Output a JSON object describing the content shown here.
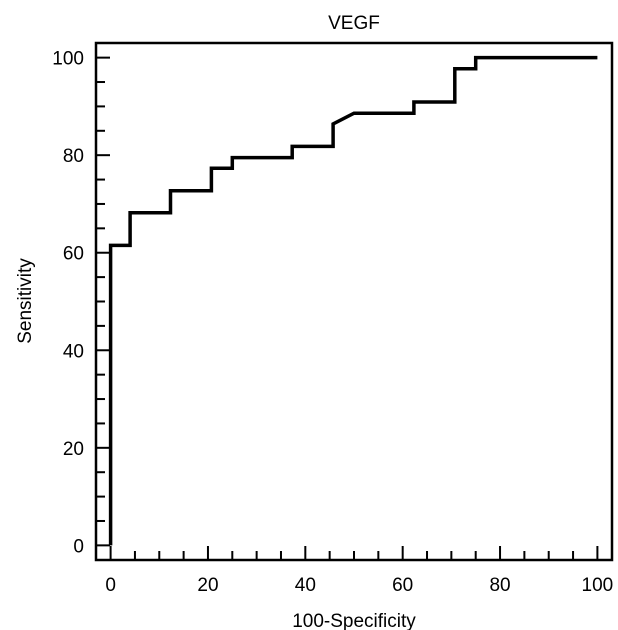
{
  "chart_data": {
    "type": "line",
    "title": "VEGF",
    "xlabel": "100-Specificity",
    "ylabel": "Sensitivity",
    "xlim": [
      -3,
      103
    ],
    "ylim": [
      -3,
      103
    ],
    "x_ticks": [
      0,
      20,
      40,
      60,
      80,
      100
    ],
    "y_ticks": [
      0,
      20,
      40,
      60,
      80,
      100
    ],
    "grid": false,
    "series": [
      {
        "step": true,
        "color": "#000000",
        "points": [
          [
            0,
            0
          ],
          [
            0,
            61.5
          ],
          [
            4,
            61.5
          ],
          [
            4,
            68.2
          ],
          [
            12.3,
            68.2
          ],
          [
            12.3,
            72.7
          ],
          [
            20.7,
            72.7
          ],
          [
            20.7,
            77.3
          ],
          [
            25,
            77.3
          ],
          [
            25,
            79.5
          ],
          [
            37.3,
            79.5
          ],
          [
            37.3,
            81.8
          ],
          [
            45.7,
            81.8
          ],
          [
            45.7,
            86.4
          ],
          [
            50,
            88.6
          ],
          [
            62.3,
            88.6
          ],
          [
            62.3,
            90.9
          ],
          [
            70.7,
            90.9
          ],
          [
            70.7,
            97.7
          ],
          [
            75,
            97.7
          ],
          [
            75,
            100
          ],
          [
            100,
            100
          ]
        ]
      }
    ]
  }
}
